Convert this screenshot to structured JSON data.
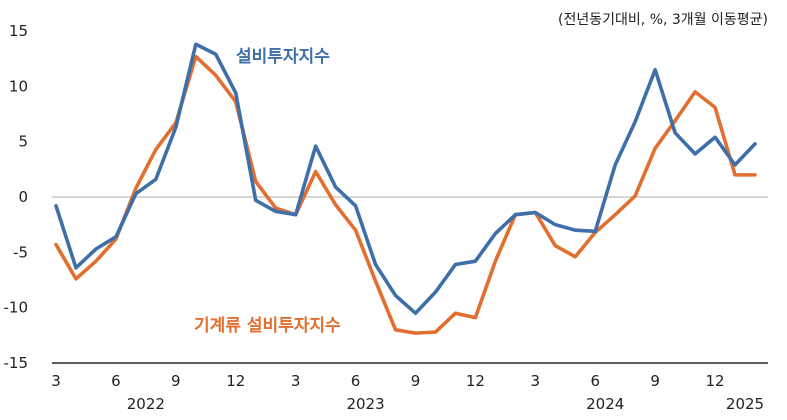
{
  "chart_data": {
    "type": "line",
    "unit_note": "(전년동기대비, %, 3개월 이동평균)",
    "ylim": [
      -15,
      15
    ],
    "yticks": [
      15,
      10,
      5,
      0,
      -5,
      -10,
      -15
    ],
    "grid": false,
    "x_tick_labels": [
      "3",
      "6",
      "9",
      "12",
      "3",
      "6",
      "9",
      "12",
      "3",
      "6",
      "9",
      "12"
    ],
    "year_labels": [
      "2022",
      "2023",
      "2024",
      "2025"
    ],
    "x": [
      "2022-03",
      "2022-04",
      "2022-05",
      "2022-06",
      "2022-07",
      "2022-08",
      "2022-09",
      "2022-10",
      "2022-11",
      "2022-12",
      "2023-01",
      "2023-02",
      "2023-03",
      "2023-04",
      "2023-05",
      "2023-06",
      "2023-07",
      "2023-08",
      "2023-09",
      "2023-10",
      "2023-11",
      "2023-12",
      "2024-01",
      "2024-02",
      "2024-03",
      "2024-04",
      "2024-05",
      "2024-06",
      "2024-07",
      "2024-08",
      "2024-09",
      "2024-10",
      "2024-11",
      "2024-12",
      "2025-01",
      "2025-02"
    ],
    "series": [
      {
        "name": "설비투자지수",
        "color": "#3f6fa8",
        "values": [
          -0.8,
          -6.4,
          -4.7,
          -3.6,
          0.3,
          1.6,
          6.3,
          13.8,
          12.9,
          9.4,
          -0.3,
          -1.3,
          -1.6,
          4.6,
          0.9,
          -0.8,
          -6.1,
          -8.9,
          -10.5,
          -8.6,
          -6.1,
          -5.8,
          -3.3,
          -1.6,
          -1.4,
          -2.5,
          -3.0,
          -3.1,
          2.9,
          6.8,
          11.5,
          5.8,
          3.9,
          5.4,
          2.9,
          4.8
        ]
      },
      {
        "name": "기계류 설비투자지수",
        "color": "#e26f2f",
        "values": [
          -4.3,
          -7.4,
          -5.8,
          -3.8,
          0.8,
          4.3,
          6.7,
          12.7,
          11.0,
          8.6,
          1.4,
          -1.0,
          -1.6,
          2.3,
          -0.7,
          -3.0,
          -7.6,
          -12.0,
          -12.3,
          -12.2,
          -10.5,
          -10.9,
          -5.8,
          -1.6,
          -1.4,
          -4.4,
          -5.4,
          -3.2,
          -1.6,
          0.1,
          4.4,
          6.9,
          9.5,
          8.1,
          2.0,
          2.0
        ]
      }
    ]
  }
}
